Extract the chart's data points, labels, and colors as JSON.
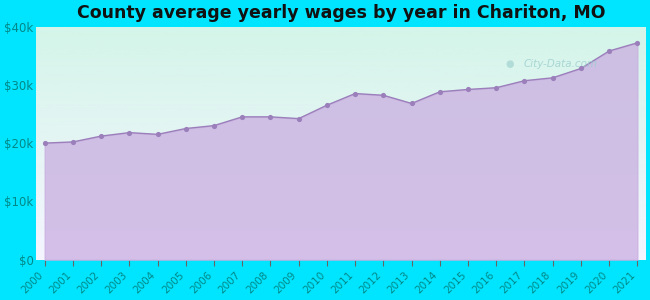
{
  "title": "County average yearly wages by year in Chariton, MO",
  "years": [
    2000,
    2001,
    2002,
    2003,
    2004,
    2005,
    2006,
    2007,
    2008,
    2009,
    2010,
    2011,
    2012,
    2013,
    2014,
    2015,
    2016,
    2017,
    2018,
    2019,
    2020,
    2021
  ],
  "wages": [
    20000,
    20200,
    21200,
    21800,
    21500,
    22500,
    23000,
    24500,
    24500,
    24200,
    26500,
    28500,
    28200,
    26800,
    28800,
    29200,
    29500,
    30700,
    31200,
    32800,
    35800,
    37200
  ],
  "bg_color": "#00e5ff",
  "fill_color": "#c9aee0",
  "line_color": "#9b7fbb",
  "dot_color": "#9b7fbb",
  "title_color": "#111111",
  "tick_color": "#008888",
  "ylim": [
    0,
    40000
  ],
  "yticks": [
    0,
    10000,
    20000,
    30000,
    40000
  ],
  "ytick_labels": [
    "$0",
    "$10k",
    "$20k",
    "$30k",
    "$40k"
  ],
  "watermark": "City-Data.com",
  "grad_top_color": "#d4f5e9",
  "grad_bottom_color": "#f5f5ff",
  "title_fontsize": 12.5
}
